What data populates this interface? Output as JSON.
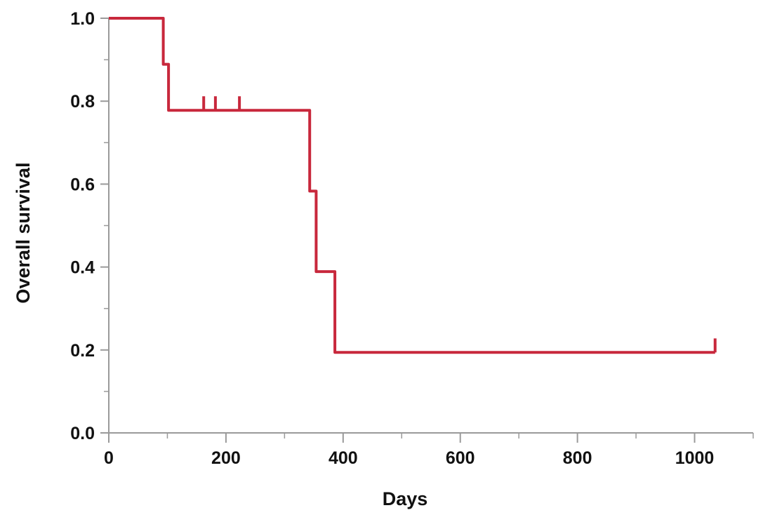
{
  "chart_data": {
    "type": "line",
    "title": "",
    "xlabel": "Days",
    "ylabel": "Overall survival",
    "xlim": [
      0,
      1100
    ],
    "ylim": [
      0,
      1.0
    ],
    "x_major_ticks": [
      0,
      200,
      400,
      600,
      800,
      1000
    ],
    "x_tick_labels": [
      "0",
      "200",
      "400",
      "600",
      "800",
      "1000"
    ],
    "x_minor_ticks": [
      100,
      300,
      500,
      700,
      900,
      1100
    ],
    "y_major_ticks": [
      0.0,
      0.2,
      0.4,
      0.6,
      0.8,
      1.0
    ],
    "y_tick_labels": [
      "0.0",
      "0.2",
      "0.4",
      "0.6",
      "0.8",
      "1.0"
    ],
    "y_minor_ticks": [
      0.1,
      0.3,
      0.5,
      0.7,
      0.9
    ],
    "grid": false,
    "legend": "none",
    "series": [
      {
        "step": true,
        "color": "#c8283c",
        "x": [
          0,
          92,
          93,
          101,
          102,
          342,
          343,
          353,
          354,
          385,
          386,
          1035
        ],
        "y": [
          1.0,
          1.0,
          0.889,
          0.889,
          0.778,
          0.778,
          0.583,
          0.583,
          0.389,
          0.389,
          0.194,
          0.194
        ],
        "censored": [
          {
            "x": 162,
            "y": 0.778
          },
          {
            "x": 182,
            "y": 0.778
          },
          {
            "x": 223,
            "y": 0.778
          },
          {
            "x": 1035,
            "y": 0.194
          }
        ]
      }
    ]
  }
}
